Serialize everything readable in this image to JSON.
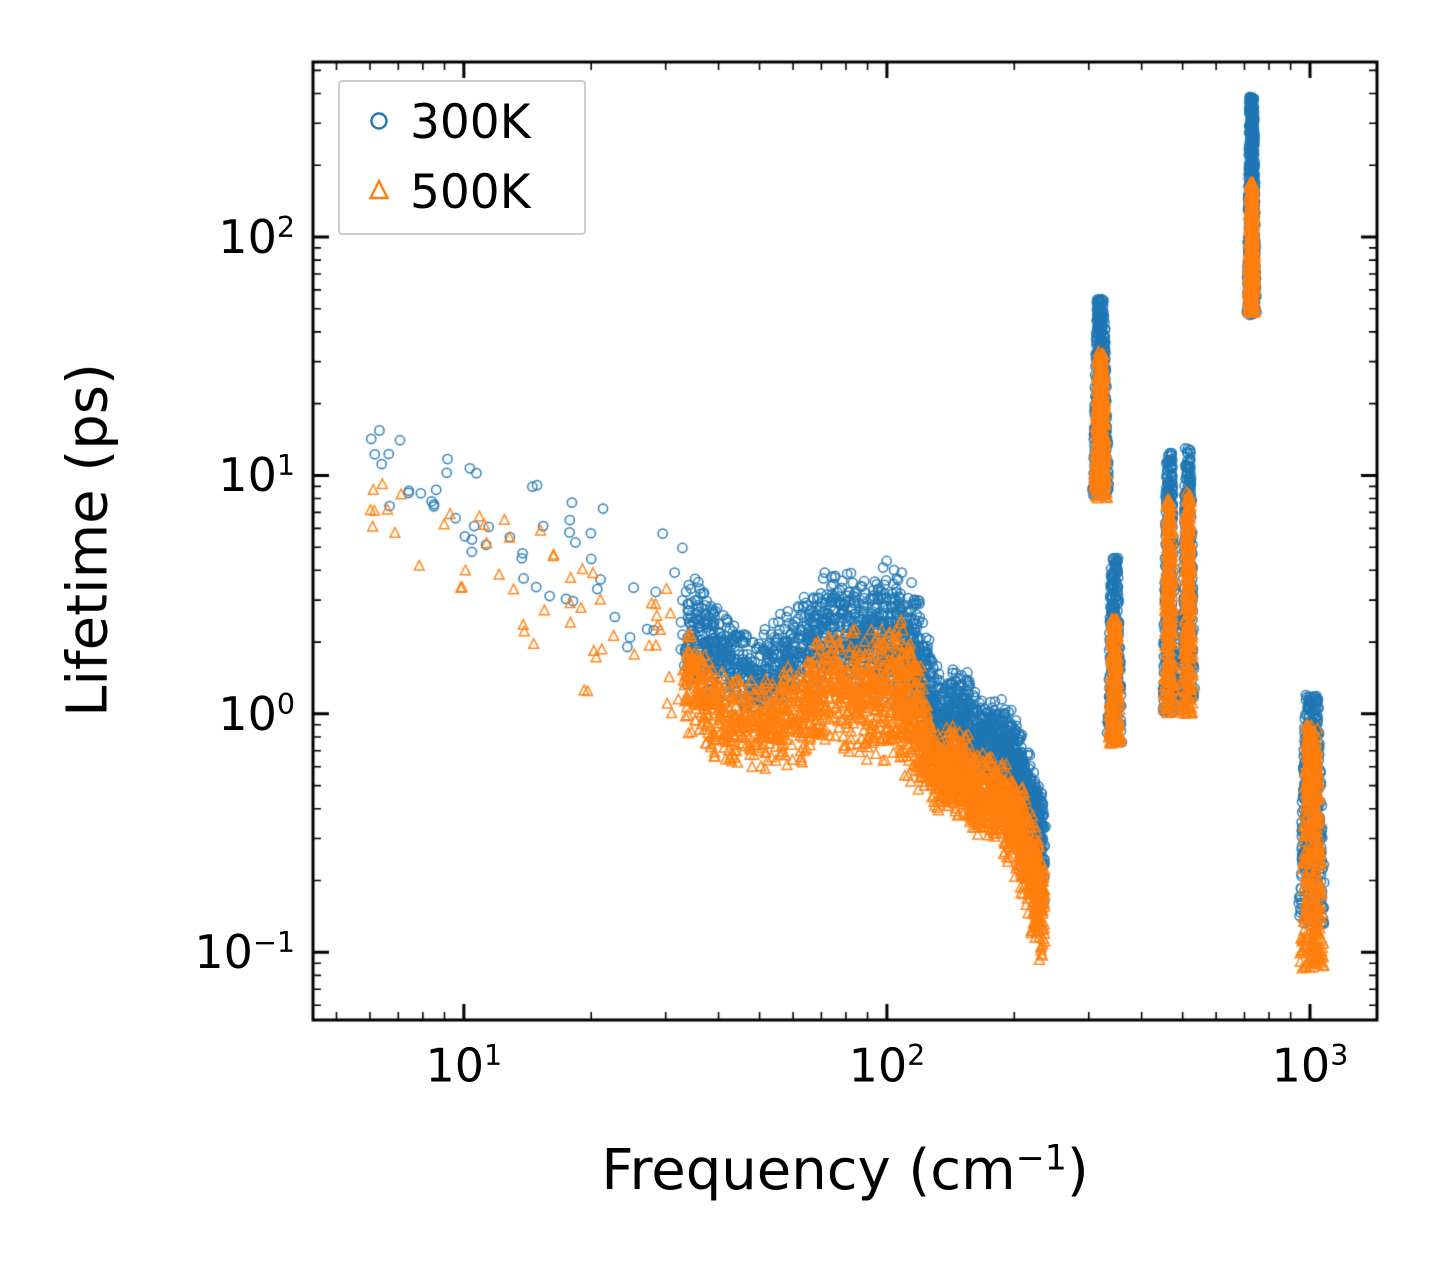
{
  "figure": {
    "xlabel_main": "Frequency (cm",
    "xlabel_sup": "−1",
    "xlabel_end": ")",
    "ylabel": "Lifetime (ps)"
  },
  "chart_data": {
    "type": "scatter",
    "title": "",
    "xlabel": "Frequency (cm^-1)",
    "ylabel": "Lifetime (ps)",
    "xscale": "log",
    "yscale": "log",
    "xlim": [
      4.4,
      1440
    ],
    "ylim": [
      0.052,
      542
    ],
    "x_major_ticks": [
      10,
      100,
      1000
    ],
    "y_major_ticks": [
      0.1,
      1,
      10,
      100
    ],
    "grid": false,
    "tick_direction": "in",
    "legend": {
      "position": "upper left",
      "entries": [
        {
          "label": "300K",
          "marker": "circle",
          "color": "#1f77b4"
        },
        {
          "label": "500K",
          "marker": "triangle",
          "color": "#ff7f0e"
        }
      ]
    },
    "series": [
      {
        "name": "300K",
        "marker": "circle",
        "color": "#1f77b4",
        "clusters": [
          {
            "kind": "band",
            "count": 55,
            "uniform": true,
            "x": [
              6,
              9,
              13,
              18,
              25,
              33
            ],
            "y_top": [
              16,
              13,
              11,
              9.5,
              7.5,
              5.5
            ],
            "y_bot": [
              8,
              5.5,
              3.3,
              2.3,
              1.8,
              1.5
            ]
          },
          {
            "kind": "band",
            "count": 2400,
            "x": [
              33,
              40,
              50,
              62,
              75,
              90,
              105,
              118,
              132,
              148,
              165,
              185,
              205,
              222,
              235
            ],
            "y_top": [
              4.5,
              3.0,
              2.3,
              3.2,
              4.3,
              4.0,
              4.7,
              3.4,
              1.5,
              1.7,
              1.2,
              1.25,
              0.95,
              0.7,
              0.45
            ],
            "y_bot": [
              1.3,
              1.05,
              0.95,
              1.1,
              1.3,
              1.15,
              1.0,
              0.8,
              0.62,
              0.6,
              0.52,
              0.5,
              0.38,
              0.22,
              0.16
            ]
          },
          {
            "kind": "stripe",
            "count": 400,
            "x_center": 320,
            "x_spread_log": 0.02,
            "y_min": 8.2,
            "y_max": 55
          },
          {
            "kind": "stripe",
            "count": 300,
            "x_center": 345,
            "x_spread_log": 0.018,
            "y_min": 0.75,
            "y_max": 4.5
          },
          {
            "kind": "stripe",
            "count": 320,
            "x_center": 465,
            "x_spread_log": 0.016,
            "y_min": 1.0,
            "y_max": 12.5
          },
          {
            "kind": "stripe",
            "count": 320,
            "x_center": 515,
            "x_spread_log": 0.016,
            "y_min": 1.1,
            "y_max": 13
          },
          {
            "kind": "stripe",
            "count": 560,
            "x_center": 728,
            "x_spread_log": 0.012,
            "y_min": 47,
            "y_max": 390
          },
          {
            "kind": "stripe",
            "count": 470,
            "x_center": 1010,
            "x_spread_log": 0.033,
            "y_min": 0.13,
            "y_max": 1.2
          }
        ]
      },
      {
        "name": "500K",
        "marker": "triangle",
        "color": "#ff7f0e",
        "clusters": [
          {
            "kind": "band",
            "count": 55,
            "uniform": true,
            "x": [
              6,
              9,
              13,
              18,
              25,
              33
            ],
            "y_top": [
              9.5,
              7.5,
              6.5,
              5.5,
              4.2,
              3.0
            ],
            "y_bot": [
              6,
              3.5,
              2.2,
              1.3,
              1.0,
              0.85
            ]
          },
          {
            "kind": "band",
            "count": 2400,
            "x": [
              33,
              40,
              50,
              62,
              75,
              90,
              105,
              118,
              132,
              148,
              165,
              185,
              205,
              222,
              235
            ],
            "y_top": [
              2.6,
              1.7,
              1.35,
              1.8,
              2.5,
              2.3,
              2.7,
              1.9,
              0.85,
              0.95,
              0.7,
              0.72,
              0.55,
              0.4,
              0.25
            ],
            "y_bot": [
              0.8,
              0.62,
              0.55,
              0.6,
              0.7,
              0.62,
              0.55,
              0.45,
              0.38,
              0.35,
              0.3,
              0.27,
              0.18,
              0.11,
              0.085
            ]
          },
          {
            "kind": "stripe",
            "count": 330,
            "x_center": 320,
            "x_spread_log": 0.017,
            "y_min": 8.0,
            "y_max": 33
          },
          {
            "kind": "stripe",
            "count": 260,
            "x_center": 345,
            "x_spread_log": 0.015,
            "y_min": 0.75,
            "y_max": 2.5
          },
          {
            "kind": "stripe",
            "count": 280,
            "x_center": 465,
            "x_spread_log": 0.014,
            "y_min": 1.0,
            "y_max": 8.0
          },
          {
            "kind": "stripe",
            "count": 280,
            "x_center": 515,
            "x_spread_log": 0.014,
            "y_min": 1.0,
            "y_max": 8.5
          },
          {
            "kind": "stripe",
            "count": 480,
            "x_center": 728,
            "x_spread_log": 0.01,
            "y_min": 48,
            "y_max": 170
          },
          {
            "kind": "stripe",
            "count": 420,
            "x_center": 1010,
            "x_spread_log": 0.03,
            "y_min": 0.085,
            "y_max": 0.9
          }
        ]
      }
    ]
  }
}
